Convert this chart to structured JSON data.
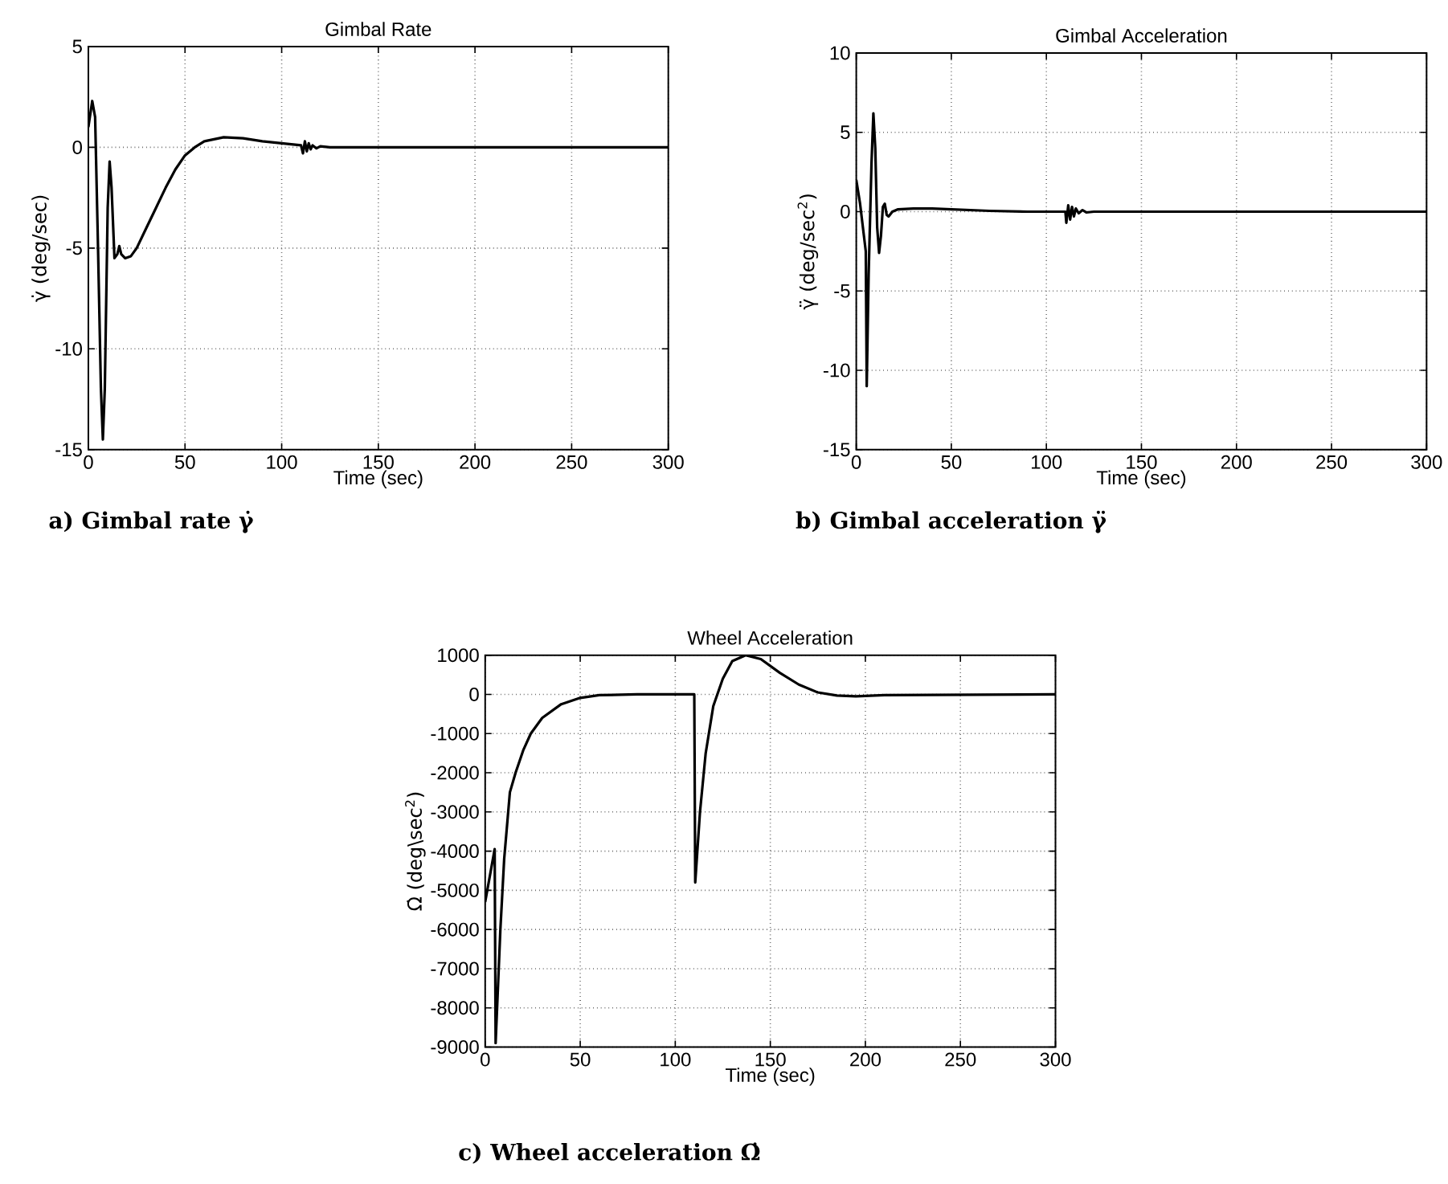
{
  "chart_data": [
    {
      "type": "line",
      "title": "Gimbal Rate",
      "xlabel": "Time (sec)",
      "ylabel": "γ̇ (deg/sec)",
      "xlim": [
        0,
        300
      ],
      "ylim": [
        -15,
        5
      ],
      "xticks": [
        0,
        50,
        100,
        150,
        200,
        250,
        300
      ],
      "yticks": [
        -15,
        -10,
        -5,
        0,
        5
      ],
      "grid": true,
      "color": "#000000",
      "annotations": [
        "a) Gimbal rate γ̇"
      ],
      "x": [
        0,
        2,
        3.5,
        5,
        6.5,
        7.5,
        8.5,
        10,
        11,
        12,
        13.5,
        15,
        16,
        17,
        19,
        22,
        25,
        30,
        35,
        40,
        45,
        50,
        55,
        60,
        70,
        80,
        90,
        100,
        110,
        111,
        112,
        113,
        114,
        115,
        116,
        118,
        120,
        125,
        300
      ],
      "values": [
        1.0,
        2.3,
        1.5,
        -5,
        -12,
        -14.5,
        -12,
        -3,
        -0.7,
        -2,
        -5.5,
        -5.3,
        -4.9,
        -5.3,
        -5.5,
        -5.4,
        -5,
        -4,
        -3,
        -2,
        -1.1,
        -0.4,
        0,
        0.3,
        0.5,
        0.45,
        0.3,
        0.2,
        0.1,
        -0.3,
        0.3,
        -0.2,
        0.2,
        -0.1,
        0.1,
        -0.05,
        0.05,
        0,
        0
      ]
    },
    {
      "type": "line",
      "title": "Gimbal Acceleration",
      "xlabel": "Time (sec)",
      "ylabel": "γ̈ (deg/sec$^{2}$)",
      "xlim": [
        0,
        300
      ],
      "ylim": [
        -15,
        10
      ],
      "xticks": [
        0,
        50,
        100,
        150,
        200,
        250,
        300
      ],
      "yticks": [
        -15,
        -10,
        -5,
        0,
        5,
        10
      ],
      "grid": true,
      "color": "#000000",
      "annotations": [
        "b) Gimbal acceleration γ̈"
      ],
      "x": [
        0,
        2,
        4,
        5,
        5.5,
        6.5,
        8,
        9,
        10,
        11,
        12,
        13,
        14,
        15,
        16,
        17,
        19,
        22,
        30,
        40,
        50,
        70,
        90,
        110,
        110.5,
        111.5,
        112.5,
        113.5,
        114.5,
        115.5,
        117,
        119,
        121,
        125,
        300
      ],
      "values": [
        2,
        0.5,
        -1.5,
        -2.5,
        -11,
        -4,
        3,
        6.2,
        4,
        -1,
        -2.6,
        -1.5,
        0.3,
        0.5,
        -0.2,
        -0.3,
        0,
        0.15,
        0.2,
        0.2,
        0.15,
        0.05,
        0,
        0,
        -0.7,
        0.4,
        -0.5,
        0.3,
        -0.3,
        0.2,
        -0.1,
        0.1,
        -0.05,
        0,
        0
      ]
    },
    {
      "type": "line",
      "title": "Wheel Acceleration",
      "xlabel": "Time (sec)",
      "ylabel": "Ω̇ (deg\\sec$^{2}$)",
      "xlim": [
        0,
        300
      ],
      "ylim": [
        -9000,
        1000
      ],
      "xticks": [
        0,
        50,
        100,
        150,
        200,
        250,
        300
      ],
      "yticks": [
        -9000,
        -8000,
        -7000,
        -6000,
        -5000,
        -4000,
        -3000,
        -2000,
        -1000,
        0,
        1000
      ],
      "grid": true,
      "color": "#000000",
      "annotations": [
        "c) Wheel acceleration Ω̇"
      ],
      "x": [
        0,
        5,
        5.5,
        8,
        10,
        13,
        16,
        20,
        24,
        30,
        40,
        50,
        60,
        80,
        110,
        110.5,
        113,
        116,
        120,
        125,
        130,
        137,
        145,
        155,
        165,
        175,
        185,
        195,
        210,
        300
      ],
      "values": [
        -5300,
        -3950,
        -8900,
        -6000,
        -4200,
        -2500,
        -2000,
        -1430,
        -1000,
        -600,
        -250,
        -90,
        -20,
        0,
        0,
        -4800,
        -3000,
        -1500,
        -300,
        400,
        850,
        1000,
        900,
        550,
        250,
        50,
        -30,
        -50,
        -20,
        0
      ]
    }
  ]
}
